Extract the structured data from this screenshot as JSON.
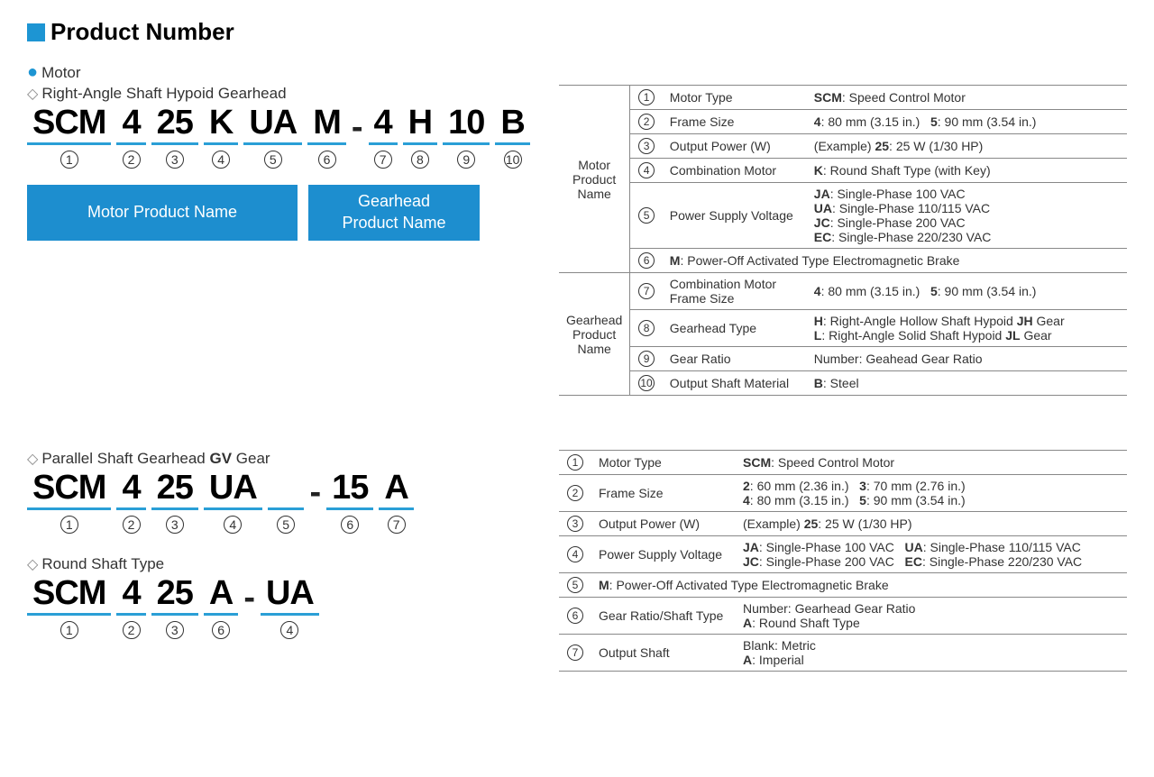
{
  "title": "Product Number",
  "motor_label": "Motor",
  "subtitle1": "Right-Angle Shaft Hypoid Gearhead",
  "code1": [
    "SCM",
    "4",
    "25",
    "K",
    "UA",
    "M",
    "-",
    "4",
    "H",
    "10",
    "B"
  ],
  "nums1": [
    "1",
    "2",
    "3",
    "4",
    "5",
    "6",
    "",
    "7",
    "8",
    "9",
    "10"
  ],
  "box_motor": "Motor Product Name",
  "box_gear": "Gearhead\nProduct Name",
  "subtitle2_a": "Parallel Shaft Gearhead ",
  "subtitle2_b": "GV",
  "subtitle2_c": " Gear",
  "code2": [
    "SCM",
    "4",
    "25",
    "UA",
    " ",
    "-",
    "15",
    "A"
  ],
  "nums2": [
    "1",
    "2",
    "3",
    "4",
    "5",
    "",
    "6",
    "7"
  ],
  "subtitle3": "Round Shaft Type",
  "code3": [
    "SCM",
    "4",
    "25",
    "A",
    "-",
    "UA"
  ],
  "nums3": [
    "1",
    "2",
    "3",
    "6",
    "",
    "4"
  ],
  "table1": {
    "group1": "Motor\nProduct\nName",
    "group2": "Gearhead\nProduct\nName",
    "rows": [
      {
        "n": "1",
        "label": "Motor Type",
        "val": "<b>SCM</b>: Speed Control Motor"
      },
      {
        "n": "2",
        "label": "Frame Size",
        "val": "<b>4</b>: 80 mm (3.15 in.)&nbsp;&nbsp;&nbsp;<b>5</b>: 90 mm (3.54 in.)"
      },
      {
        "n": "3",
        "label": "Output Power (W)",
        "val": "(Example) <b>25</b>: 25 W (1/30 HP)"
      },
      {
        "n": "4",
        "label": "Combination Motor",
        "val": "<b>K</b>: Round Shaft Type (with Key)"
      },
      {
        "n": "5",
        "label": "Power Supply Voltage",
        "val": "<b>JA</b>: Single-Phase 100 VAC<br><b>UA</b>: Single-Phase 110/115 VAC<br><b>JC</b>: Single-Phase 200 VAC<br><b>EC</b>: Single-Phase 220/230 VAC"
      },
      {
        "n": "6",
        "label": "",
        "val": "<b>M</b>: Power-Off Activated Type Electromagnetic Brake",
        "span": true
      },
      {
        "n": "7",
        "label": "Combination Motor Frame Size",
        "val": "<b>4</b>: 80 mm (3.15 in.)&nbsp;&nbsp;&nbsp;<b>5</b>: 90 mm (3.54 in.)"
      },
      {
        "n": "8",
        "label": "Gearhead Type",
        "val": "<b>H</b>: Right-Angle Hollow Shaft Hypoid <b>JH</b> Gear<br><b>L</b>: Right-Angle Solid Shaft Hypoid <b>JL</b> Gear"
      },
      {
        "n": "9",
        "label": "Gear Ratio",
        "val": "Number: Geahead Gear Ratio"
      },
      {
        "n": "10",
        "label": "Output Shaft Material",
        "val": "<b>B</b>: Steel"
      }
    ]
  },
  "table2": {
    "rows": [
      {
        "n": "1",
        "label": "Motor Type",
        "val": "<b>SCM</b>: Speed Control Motor"
      },
      {
        "n": "2",
        "label": "Frame Size",
        "val": "<b>2</b>: 60 mm (2.36 in.)&nbsp;&nbsp;&nbsp;<b>3</b>: 70 mm (2.76 in.)<br><b>4</b>: 80 mm (3.15 in.)&nbsp;&nbsp;&nbsp;<b>5</b>: 90 mm (3.54 in.)"
      },
      {
        "n": "3",
        "label": "Output Power (W)",
        "val": "(Example) <b>25</b>: 25 W (1/30 HP)"
      },
      {
        "n": "4",
        "label": "Power Supply Voltage",
        "val": "<b>JA</b>: Single-Phase 100 VAC&nbsp;&nbsp;&nbsp;<b>UA</b>: Single-Phase 110/115 VAC<br><b>JC</b>: Single-Phase 200 VAC&nbsp;&nbsp;&nbsp;<b>EC</b>: Single-Phase 220/230 VAC"
      },
      {
        "n": "5",
        "label": "",
        "val": "<b>M</b>: Power-Off Activated Type Electromagnetic Brake",
        "span": true
      },
      {
        "n": "6",
        "label": "Gear Ratio/Shaft Type",
        "val": "Number: Gearhead Gear Ratio<br><b>A</b>: Round Shaft Type"
      },
      {
        "n": "7",
        "label": "Output Shaft",
        "val": "Blank: Metric<br><b>A</b>: Imperial"
      }
    ]
  }
}
